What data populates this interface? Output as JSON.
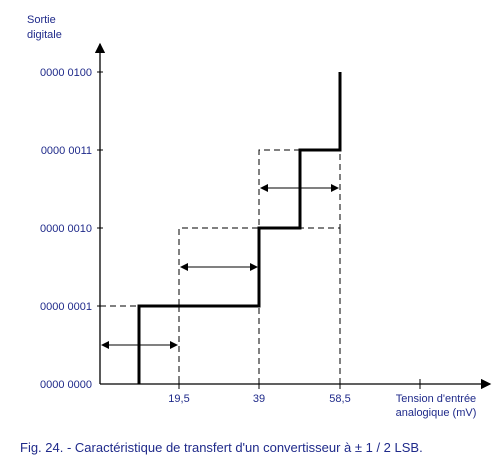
{
  "y_axis": {
    "label_line1": "Sortie",
    "label_line2": "digitale",
    "ticks": [
      "0000 0000",
      "0000 0001",
      "0000 0010",
      "0000 0011",
      "0000 0100"
    ]
  },
  "x_axis": {
    "label_line1": "Tension d'entrée",
    "label_line2": "analogique (mV)",
    "ticks": [
      "19,5",
      "39",
      "58,5"
    ]
  },
  "caption": "Fig. 24. - Caractéristique de transfert d'un convertisseur à ± 1 / 2 LSB.",
  "colors": {
    "text": "#1f2a8a",
    "lines": "#000000"
  }
}
